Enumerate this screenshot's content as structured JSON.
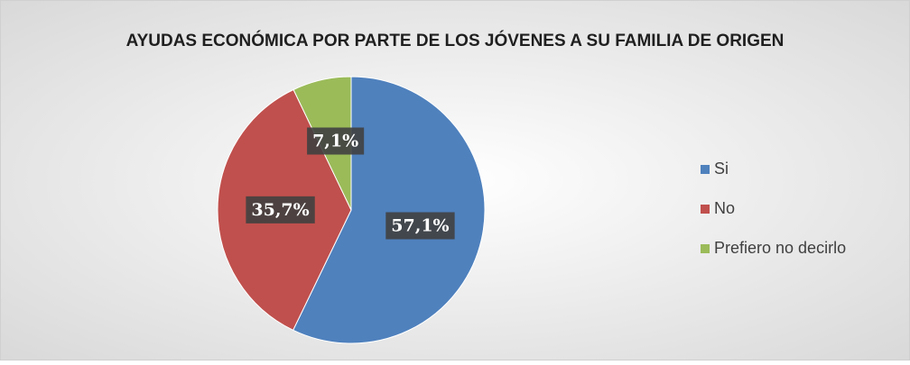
{
  "chart_data": {
    "type": "pie",
    "title": "AYUDAS ECONÓMICA POR PARTE DE LOS JÓVENES A SU FAMILIA DE ORIGEN",
    "categories": [
      "Si",
      "No",
      "Prefiero no decirlo"
    ],
    "values": [
      57.1,
      35.7,
      7.1
    ],
    "value_labels": [
      "57,1%",
      "35,7%",
      "7,1%"
    ],
    "colors": [
      "#4f81bd",
      "#c0504d",
      "#9bbb59"
    ],
    "legend": "right"
  }
}
